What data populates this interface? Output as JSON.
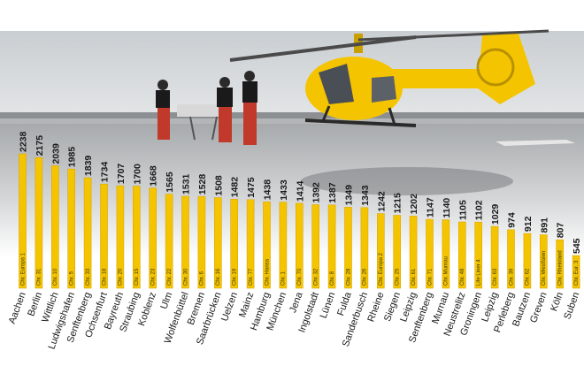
{
  "chart_data": {
    "type": "bar",
    "title": "",
    "xlabel": "",
    "ylabel": "",
    "ylim": [
      0,
      2400
    ],
    "grid": false,
    "legend": "none",
    "colors": {
      "bar": "#f5c400",
      "bar_stroke": "#d9a800",
      "inner_label": "#3a3a00",
      "value_label": "#1a1a1a",
      "city_label": "#1a1a1a"
    },
    "categories": [
      "Aachen",
      "Berlin",
      "Wittlich",
      "Ludwigshafen",
      "Senftenberg",
      "Ochsenfurt",
      "Bayreuth",
      "Straubing",
      "Koblenz",
      "Ulm",
      "Wolfenbüttel",
      "Bremen",
      "Saarbrücken",
      "Uelzen",
      "Mainz",
      "Hamburg",
      "München",
      "Jena",
      "Ingolstadt",
      "Lünen",
      "Fulda",
      "Sanderbusch",
      "Rheine",
      "Siegen",
      "Leipzig",
      "Senftenberg",
      "Murnau",
      "Neustrelitz",
      "Groningen",
      "Leipzig",
      "Perleberg",
      "Bautzen",
      "Greven",
      "Köln",
      "Suben"
    ],
    "helicopters": [
      "Chr. Europa 1",
      "Chr. 31",
      "Chr. 10",
      "Chr. 5",
      "Chr. 33",
      "Chr. 18",
      "Chr. 20",
      "Chr. 15",
      "Chr. 23",
      "Chr. 22",
      "Chr. 30",
      "Chr. 6",
      "Chr. 16",
      "Chr. 19",
      "Chr. 77",
      "Chr. Hansa",
      "Chr. 1",
      "Chr. 70",
      "Chr. 32",
      "Chr. 8",
      "Chr. 28",
      "Chr. 26",
      "Chr. Europa 2",
      "Chr. 25",
      "Chr. 61",
      "Chr. 71",
      "Chr. Murnau",
      "Chr. 48",
      "Life Liner 4",
      "Chr. 63",
      "Chr. 39",
      "Chr. 62",
      "Chr. Westfalen",
      "Chr. Rheinland",
      "Chr. Eur. 3"
    ],
    "values": [
      2238,
      2175,
      2039,
      1985,
      1839,
      1734,
      1707,
      1700,
      1668,
      1565,
      1531,
      1528,
      1508,
      1482,
      1475,
      1438,
      1433,
      1414,
      1392,
      1387,
      1349,
      1343,
      1242,
      1215,
      1202,
      1147,
      1140,
      1105,
      1102,
      1029,
      974,
      912,
      891,
      807,
      545
    ]
  }
}
